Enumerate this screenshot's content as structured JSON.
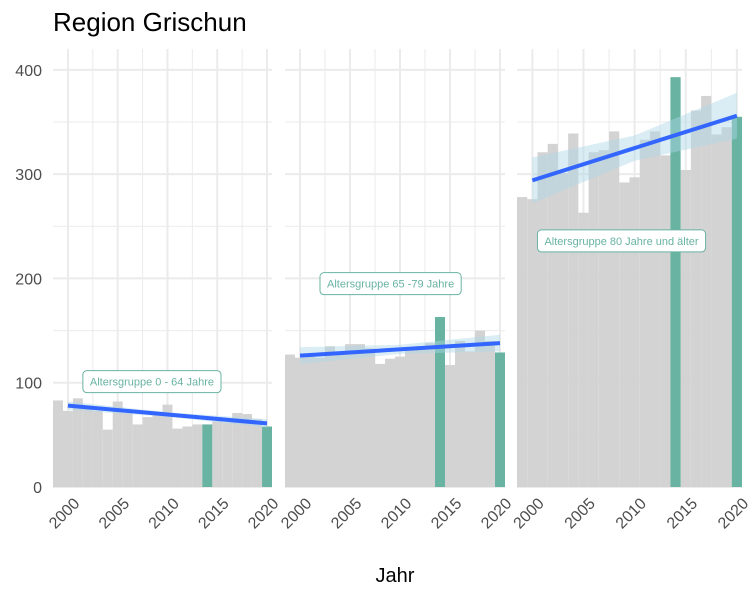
{
  "chart_data": {
    "type": "bar",
    "title": "Region Grischun",
    "xlabel": "Jahr",
    "ylabel": "",
    "ylim": [
      0,
      420
    ],
    "yticks": [
      0,
      100,
      200,
      300,
      400
    ],
    "xticks": [
      2000,
      2005,
      2010,
      2015,
      2020
    ],
    "grid": true,
    "colors": {
      "bar": "#d3d3d3",
      "highlight": "#69b3a2",
      "trend": "#3366ff",
      "band": "#add8e6",
      "grid": "#ebebeb"
    },
    "highlight_years": [
      2014,
      2020
    ],
    "x": [
      1999,
      2000,
      2001,
      2002,
      2003,
      2004,
      2005,
      2006,
      2007,
      2008,
      2009,
      2010,
      2011,
      2012,
      2013,
      2014,
      2015,
      2016,
      2017,
      2018,
      2019,
      2020
    ],
    "panels": [
      {
        "label": "Altersgruppe 0 - 64 Jahre",
        "label_pos": [
          2001.5,
          101
        ],
        "values": [
          83,
          73,
          85,
          75,
          73,
          55,
          82,
          71,
          60,
          67,
          72,
          79,
          56,
          58,
          60,
          60,
          63,
          62,
          71,
          70,
          65,
          58
        ],
        "trend": [
          78,
          61
        ],
        "band_width": 4
      },
      {
        "label": "Altersgruppe 65 -79 Jahre",
        "label_pos": [
          2002,
          195
        ],
        "values": [
          127,
          124,
          128,
          124,
          135,
          130,
          137,
          137,
          133,
          118,
          123,
          125,
          132,
          135,
          138,
          163,
          117,
          140,
          130,
          150,
          140,
          129
        ],
        "trend": [
          126,
          138
        ],
        "band_width": 8
      },
      {
        "label": "Altersgruppe 80 Jahre und älter",
        "label_pos": [
          2000.5,
          236
        ],
        "values": [
          278,
          276,
          321,
          329,
          301,
          339,
          263,
          321,
          323,
          341,
          292,
          297,
          333,
          341,
          318,
          393,
          304,
          361,
          375,
          338,
          345,
          355
        ],
        "trend": [
          294,
          356
        ],
        "band_width": 22
      }
    ]
  }
}
